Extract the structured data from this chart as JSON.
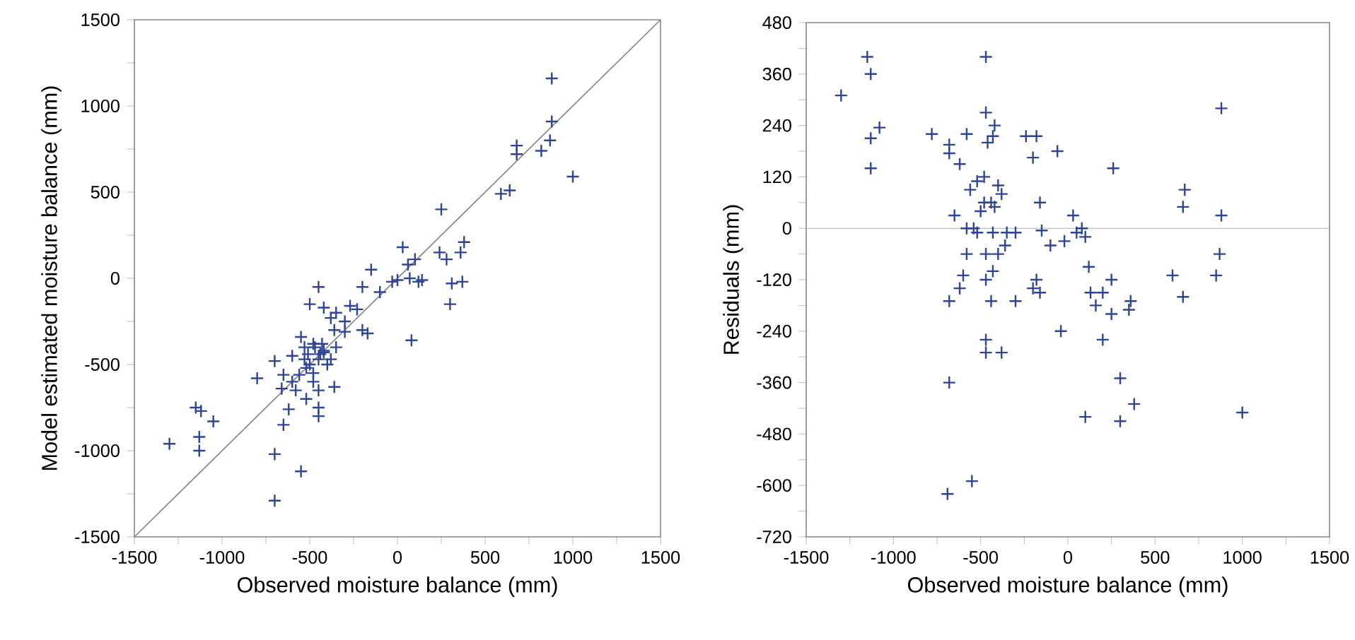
{
  "chart_data": [
    {
      "type": "scatter",
      "xlabel": "Observed moisture balance (mm)",
      "ylabel": "Model estimated  moisture balance (mm)",
      "xlim": [
        -1500,
        1500
      ],
      "ylim": [
        -1500,
        1500
      ],
      "xticks": [
        -1500,
        {
          "value": -1250,
          "label": null
        },
        -1000,
        {
          "value": -750,
          "label": null
        },
        -500,
        {
          "value": -250,
          "label": null
        },
        0,
        {
          "value": 250,
          "label": null
        },
        500,
        {
          "value": 750,
          "label": null
        },
        1000,
        {
          "value": 1250,
          "label": null
        },
        1500
      ],
      "yticks": [
        -1500,
        {
          "value": -1250,
          "label": null
        },
        -1000,
        {
          "value": -750,
          "label": null
        },
        -500,
        {
          "value": -250,
          "label": null
        },
        0,
        {
          "value": 250,
          "label": null
        },
        500,
        {
          "value": 750,
          "label": null
        },
        1000,
        {
          "value": 1250,
          "label": null
        },
        1500
      ],
      "series": [
        {
          "marker": "cross",
          "color": "#2e4596",
          "x": [
            880,
            880,
            870,
            820,
            680,
            680,
            1000,
            640,
            590,
            250,
            380,
            360,
            240,
            280,
            100,
            30,
            -150,
            -30,
            60,
            0,
            -100,
            -200,
            70,
            140,
            310,
            370,
            300,
            120,
            80,
            -200,
            -170,
            -300,
            -270,
            -450,
            -420,
            -350,
            -380,
            -360,
            -500,
            -300,
            -230,
            -350,
            -550,
            -600,
            -480,
            -420,
            -450,
            -500,
            -520,
            -480,
            -530,
            -560,
            -400,
            -440,
            -470,
            -510,
            -600,
            -650,
            -700,
            -660,
            -580,
            -520,
            -480,
            -450,
            -450,
            -450,
            -360,
            -800,
            -620,
            -650,
            -700,
            -550,
            -700,
            -1150,
            -1120,
            -1050,
            -1130,
            -1130,
            -1300,
            -420,
            -380,
            -430,
            -530
          ],
          "values": [
            1160,
            910,
            800,
            740,
            770,
            720,
            590,
            510,
            490,
            400,
            210,
            150,
            150,
            110,
            110,
            180,
            50,
            -20,
            80,
            -10,
            -80,
            -50,
            0,
            -10,
            -30,
            -20,
            -150,
            -20,
            -360,
            -300,
            -320,
            -250,
            -160,
            -50,
            -170,
            -200,
            -230,
            -300,
            -150,
            -310,
            -180,
            -400,
            -340,
            -450,
            -380,
            -420,
            -470,
            -500,
            -520,
            -550,
            -470,
            -560,
            -500,
            -440,
            -400,
            -440,
            -600,
            -560,
            -480,
            -640,
            -650,
            -700,
            -600,
            -650,
            -750,
            -800,
            -630,
            -580,
            -760,
            -850,
            -1020,
            -1120,
            -1290,
            -750,
            -770,
            -830,
            -920,
            -1000,
            -960,
            -430,
            -470,
            -380,
            -400
          ]
        },
        {
          "type": "line",
          "color": "#808080",
          "x": [
            -1500,
            1500
          ],
          "values": [
            -1500,
            1500
          ]
        }
      ]
    },
    {
      "type": "scatter",
      "xlabel": "Observed moisture balance (mm)",
      "ylabel": "Residuals (mm)",
      "xlim": [
        -1500,
        1500
      ],
      "ylim": [
        -720,
        480
      ],
      "xticks": [
        -1500,
        {
          "value": -1250,
          "label": null
        },
        -1000,
        {
          "value": -750,
          "label": null
        },
        -500,
        {
          "value": -250,
          "label": null
        },
        0,
        {
          "value": 250,
          "label": null
        },
        500,
        {
          "value": 750,
          "label": null
        },
        1000,
        {
          "value": 1250,
          "label": null
        },
        1500
      ],
      "yticks": [
        -720,
        {
          "value": -660,
          "label": null
        },
        -600,
        {
          "value": -540,
          "label": null
        },
        -480,
        {
          "value": -420,
          "label": null
        },
        -360,
        {
          "value": -300,
          "label": null
        },
        -240,
        {
          "value": -180,
          "label": null
        },
        -120,
        {
          "value": -60,
          "label": null
        },
        0,
        {
          "value": 60,
          "label": null
        },
        120,
        {
          "value": 180,
          "label": null
        },
        240,
        {
          "value": 300,
          "label": null
        },
        360,
        {
          "value": 420,
          "label": null
        },
        480
      ],
      "ref_lines": [
        {
          "axis": "y",
          "value": 0,
          "color": "#b0b0b0"
        }
      ],
      "series": [
        {
          "marker": "cross",
          "color": "#2e4596",
          "x": [
            -1300,
            -1150,
            -1130,
            -1130,
            -1080,
            -1130,
            -780,
            -680,
            -680,
            -580,
            -620,
            -470,
            -470,
            -420,
            -430,
            -460,
            -240,
            -180,
            -200,
            -60,
            260,
            880,
            670,
            660,
            880,
            -420,
            -520,
            -480,
            -560,
            -400,
            -380,
            -500,
            -480,
            -440,
            -540,
            -580,
            -430,
            -350,
            -160,
            -150,
            -650,
            -520,
            -470,
            -400,
            -300,
            -100,
            30,
            80,
            50,
            100,
            -580,
            -600,
            -620,
            -680,
            -470,
            -430,
            -440,
            -180,
            -160,
            120,
            130,
            160,
            250,
            200,
            250,
            360,
            350,
            600,
            660,
            850,
            870,
            -470,
            -470,
            -380,
            -40,
            200,
            -680,
            300,
            380,
            100,
            300,
            1000,
            -550,
            -690,
            -200,
            -20,
            -300,
            -360
          ],
          "values": [
            310,
            400,
            360,
            210,
            235,
            140,
            220,
            195,
            175,
            220,
            150,
            400,
            270,
            240,
            215,
            200,
            215,
            215,
            165,
            180,
            140,
            280,
            90,
            50,
            30,
            50,
            110,
            120,
            90,
            100,
            80,
            40,
            60,
            60,
            0,
            0,
            -10,
            -10,
            60,
            -5,
            30,
            -10,
            -60,
            -60,
            -10,
            -40,
            30,
            0,
            -10,
            -20,
            -60,
            -110,
            -140,
            -170,
            -120,
            -100,
            -170,
            -120,
            -150,
            -90,
            -150,
            -180,
            -120,
            -150,
            -200,
            -170,
            -190,
            -110,
            -160,
            -110,
            -60,
            -260,
            -290,
            -290,
            -240,
            -260,
            -360,
            -350,
            -410,
            -440,
            -450,
            -430,
            -590,
            -620,
            -140,
            -30,
            -170,
            -40
          ]
        }
      ]
    }
  ]
}
